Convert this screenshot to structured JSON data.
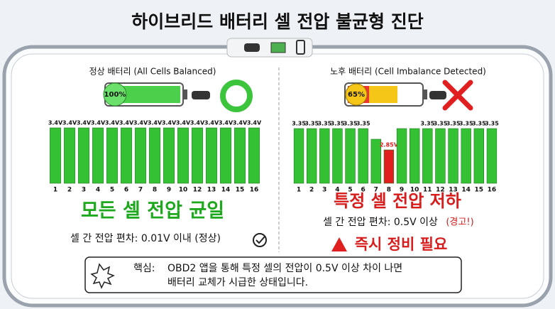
{
  "title": "하이브리드 배터리 셀 전압 불균형 진단",
  "panels": [
    {
      "heading": "정상 배터리 (All Cells Balanced)",
      "battery_level": "100%",
      "chart_data": {
        "type": "bar",
        "categories": [
          "1",
          "2",
          "3",
          "4",
          "5",
          "6",
          "7",
          "8",
          "9",
          "10",
          "12",
          "13",
          "14",
          "15",
          "16"
        ],
        "values": [
          3.4,
          3.4,
          3.4,
          3.4,
          3.4,
          3.4,
          3.4,
          3.4,
          3.4,
          3.4,
          3.4,
          3.4,
          3.4,
          3.4,
          3.4
        ],
        "value_labels": [
          "3.4V",
          "3.4V",
          "3.4V",
          "3.4V",
          "3.4V",
          "3.4V",
          "3.4V",
          "3.4V",
          "3.4V",
          "3.4V",
          "3.4V",
          "3.4V",
          "3.4V",
          "3.4V",
          "3.4V"
        ],
        "color": "#34c234",
        "ylim": [
          2.4,
          3.4
        ]
      },
      "status": "모든 셀 전압 균일",
      "deviation": "셀 간 전압 편차: 0.01V 이내 (정상)"
    },
    {
      "heading": "노후 배터리 (Cell Imbalance Detected)",
      "battery_level": "65%",
      "chart_data": {
        "type": "bar",
        "categories": [
          "1",
          "2",
          "3",
          "4",
          "5",
          "6",
          "7",
          "8",
          "9",
          "10",
          "11",
          "12",
          "13",
          "14",
          "15",
          "16"
        ],
        "values": [
          3.35,
          3.35,
          3.35,
          3.35,
          3.35,
          3.35,
          3.1,
          2.85,
          3.35,
          3.35,
          3.35,
          3.35,
          3.35,
          3.35,
          3.35,
          3.35
        ],
        "value_labels": [
          "3.35",
          "3.35",
          "3.35",
          "3.35",
          "3.35",
          "3.35",
          null,
          "2.85V",
          null,
          null,
          "3.35",
          "3.35",
          "3.35",
          "3.35",
          "3.35",
          "3.35"
        ],
        "colors": [
          "#34c234",
          "#34c234",
          "#34c234",
          "#34c234",
          "#34c234",
          "#34c234",
          "#34c234",
          "#e21f1f",
          "#34c234",
          "#34c234",
          "#34c234",
          "#34c234",
          "#34c234",
          "#34c234",
          "#34c234",
          "#34c234"
        ],
        "ylim": [
          2.4,
          3.4
        ]
      },
      "status": "특정 셀 전압 저하",
      "deviation": "셀 간 전압 편차: 0.5V 이상",
      "warning": "(경고!)",
      "alert": "즉시 정비 필요"
    }
  ],
  "note": {
    "label": "핵심:",
    "line1": "OBD2 앱을 통해 특정 셀의 전압이 0.5V 이상 차이 나면",
    "line2": "배터리 교체가 시급한 상태입니다."
  }
}
